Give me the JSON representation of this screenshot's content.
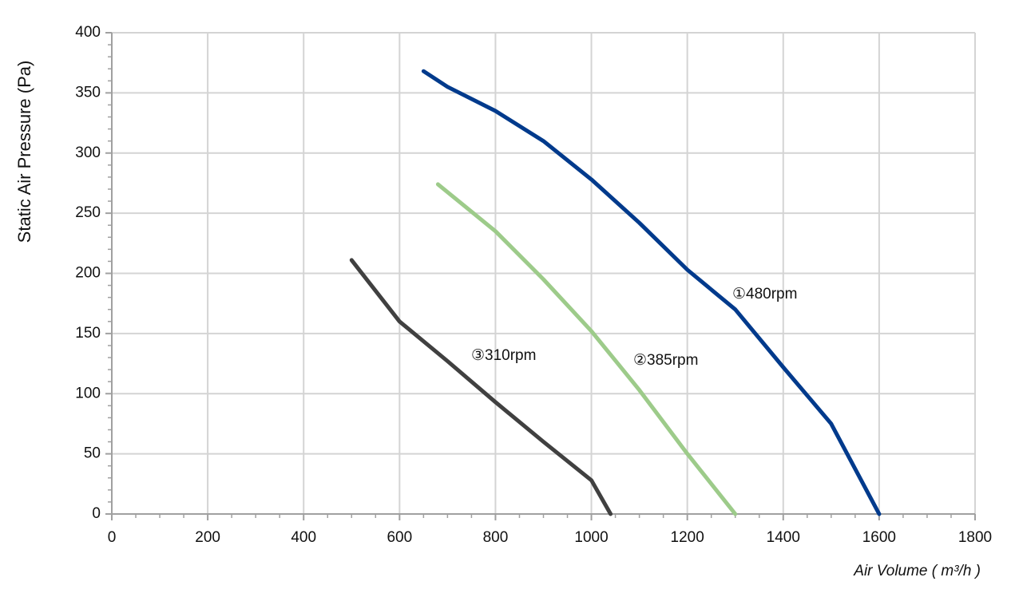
{
  "chart_data": {
    "type": "line",
    "x_label": "Air Volume ( m³/h )",
    "y_label": "Static Air Pressure  (Pa)",
    "xlim": [
      0,
      1800
    ],
    "xticks": [
      0,
      200,
      400,
      600,
      800,
      1000,
      1200,
      1400,
      1600,
      1800
    ],
    "ylim": [
      0,
      400
    ],
    "yticks": [
      0,
      50,
      100,
      150,
      200,
      250,
      300,
      350,
      400
    ],
    "grid": true,
    "series": [
      {
        "name": "①480rpm",
        "color": "#003a8c",
        "x": [
          650,
          700,
          800,
          900,
          1000,
          1100,
          1200,
          1300,
          1400,
          1500,
          1600
        ],
        "values": [
          368,
          355,
          335,
          310,
          278,
          242,
          203,
          170,
          122,
          75,
          0
        ]
      },
      {
        "name": "②385rpm",
        "color": "#9dcb8a",
        "x": [
          680,
          800,
          900,
          1000,
          1100,
          1200,
          1300
        ],
        "values": [
          274,
          235,
          195,
          152,
          103,
          50,
          0
        ]
      },
      {
        "name": "③310rpm",
        "color": "#404040",
        "x": [
          500,
          600,
          700,
          800,
          900,
          1000,
          1040
        ],
        "values": [
          211,
          160,
          127,
          93,
          60,
          28,
          0
        ]
      }
    ]
  }
}
